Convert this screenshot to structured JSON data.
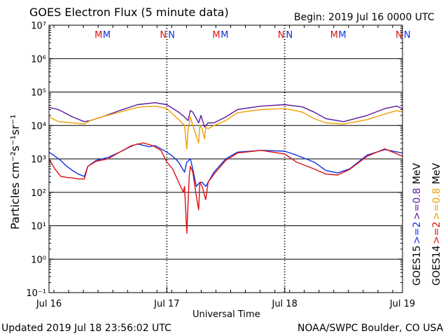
{
  "header": {
    "title": "GOES Electron Flux (5 minute data)",
    "begin": "Begin: 2019 Jul 16 0000 UTC"
  },
  "footer": {
    "updated": "Updated 2019 Jul 18 23:56:02 UTC",
    "credit": "NOAA/SWPC Boulder, CO USA"
  },
  "colors": {
    "goes15_high": "#5a1a9a",
    "goes14_high": "#f0a000",
    "goes15_low": "#1030e0",
    "goes14_low": "#e01010",
    "m_marker_primary": "#e01010",
    "m_marker_secondary": "#1030e0"
  },
  "chart_data": {
    "type": "line",
    "title": "GOES Electron Flux (5 minute data)",
    "xlabel": "Universal Time",
    "ylabel": "Particles cm⁻²s⁻¹sr⁻¹",
    "yscale": "log",
    "ylim": [
      0.1,
      10000000
    ],
    "xlim_days": [
      0,
      3
    ],
    "x_ticks": [
      "Jul 16",
      "Jul 17",
      "Jul 18",
      "Jul 19"
    ],
    "y_ticks": [
      "10⁷",
      "10⁶",
      "10⁵",
      "10⁴",
      "10³",
      "10²",
      "10¹",
      "10⁰",
      "10⁻¹"
    ],
    "threshold_line": 1000,
    "grid": true,
    "markers": [
      {
        "label": "M",
        "x": 0.42,
        "color": "#e01010"
      },
      {
        "label": "M",
        "x": 0.49,
        "color": "#1030e0"
      },
      {
        "label": "N",
        "x": 0.97,
        "color": "#e01010"
      },
      {
        "label": "N",
        "x": 1.04,
        "color": "#1030e0"
      },
      {
        "label": "M",
        "x": 1.42,
        "color": "#e01010"
      },
      {
        "label": "M",
        "x": 1.49,
        "color": "#1030e0"
      },
      {
        "label": "N",
        "x": 1.97,
        "color": "#e01010"
      },
      {
        "label": "N",
        "x": 2.04,
        "color": "#1030e0"
      },
      {
        "label": "M",
        "x": 2.42,
        "color": "#e01010"
      },
      {
        "label": "M",
        "x": 2.49,
        "color": "#1030e0"
      },
      {
        "label": "N",
        "x": 2.97,
        "color": "#e01010"
      },
      {
        "label": "N",
        "x": 3.04,
        "color": "#1030e0"
      }
    ],
    "legend_right": [
      {
        "text": "GOES15",
        "color": "#000000",
        "col": 1,
        "start": 0
      },
      {
        "text": ">=2",
        "color": "#1030e0",
        "col": 1,
        "start": 1
      },
      {
        "text": ">=0.8",
        "color": "#5a1a9a",
        "col": 1,
        "start": 2
      },
      {
        "text": "MeV",
        "color": "#000000",
        "col": 1,
        "start": 3
      },
      {
        "text": "GOES14",
        "color": "#000000",
        "col": 2,
        "start": 0
      },
      {
        "text": ">=2",
        "color": "#e01010",
        "col": 2,
        "start": 1
      },
      {
        "text": ">=0.8",
        "color": "#f0a000",
        "col": 2,
        "start": 2
      },
      {
        "text": "MeV",
        "color": "#000000",
        "col": 2,
        "start": 3
      }
    ],
    "series": [
      {
        "name": "GOES15 >=0.8 MeV",
        "color": "#5a1a9a",
        "x": [
          0,
          0.08,
          0.2,
          0.3,
          0.35,
          0.45,
          0.6,
          0.75,
          0.9,
          1.0,
          1.1,
          1.15,
          1.18,
          1.2,
          1.22,
          1.27,
          1.29,
          1.32,
          1.35,
          1.4,
          1.5,
          1.6,
          1.8,
          2.0,
          2.15,
          2.25,
          2.35,
          2.5,
          2.7,
          2.85,
          2.95,
          3.0
        ],
        "y": [
          35000,
          30000,
          18000,
          13000,
          14000,
          18000,
          28000,
          42000,
          48000,
          42000,
          25000,
          18000,
          14000,
          28000,
          25000,
          12000,
          20000,
          9000,
          12000,
          12000,
          18000,
          30000,
          38000,
          42000,
          36000,
          25000,
          16000,
          13000,
          20000,
          32000,
          38000,
          32000
        ]
      },
      {
        "name": "GOES14 >=0.8 MeV",
        "color": "#f0a000",
        "x": [
          0,
          0.08,
          0.2,
          0.3,
          0.35,
          0.45,
          0.6,
          0.75,
          0.9,
          1.0,
          1.1,
          1.15,
          1.17,
          1.18,
          1.2,
          1.22,
          1.27,
          1.28,
          1.3,
          1.32,
          1.33,
          1.35,
          1.4,
          1.5,
          1.6,
          1.8,
          2.0,
          2.15,
          2.25,
          2.35,
          2.5,
          2.7,
          2.85,
          2.95,
          3.0
        ],
        "y": [
          18000,
          13000,
          12000,
          11000,
          14000,
          18000,
          25000,
          35000,
          38000,
          32000,
          15000,
          10000,
          2000,
          7000,
          18000,
          10000,
          3000,
          10000,
          8000,
          4000,
          9000,
          8000,
          10000,
          14000,
          24000,
          30000,
          32000,
          25000,
          16000,
          12000,
          11000,
          15000,
          22000,
          28000,
          25000
        ]
      },
      {
        "name": "GOES15 >=2 MeV",
        "color": "#1030e0",
        "x": [
          0,
          0.05,
          0.1,
          0.15,
          0.2,
          0.25,
          0.3,
          0.33,
          0.4,
          0.5,
          0.6,
          0.7,
          0.75,
          0.85,
          0.9,
          0.95,
          1.0,
          1.05,
          1.1,
          1.15,
          1.17,
          1.2,
          1.22,
          1.25,
          1.28,
          1.3,
          1.33,
          1.35,
          1.4,
          1.5,
          1.6,
          1.8,
          2.0,
          2.1,
          2.25,
          2.35,
          2.45,
          2.55,
          2.7,
          2.85,
          3.0
        ],
        "y": [
          1600,
          1200,
          900,
          600,
          450,
          350,
          300,
          600,
          900,
          1100,
          1600,
          2400,
          2800,
          2300,
          2500,
          2000,
          1600,
          1200,
          800,
          400,
          800,
          1000,
          500,
          150,
          200,
          200,
          150,
          200,
          400,
          1000,
          1600,
          1800,
          1700,
          1300,
          800,
          450,
          380,
          500,
          1300,
          1900,
          1500
        ]
      },
      {
        "name": "GOES14 >=2 MeV",
        "color": "#e01010",
        "x": [
          0,
          0.05,
          0.1,
          0.15,
          0.2,
          0.25,
          0.3,
          0.33,
          0.4,
          0.5,
          0.6,
          0.7,
          0.8,
          0.88,
          0.95,
          1.0,
          1.05,
          1.1,
          1.14,
          1.15,
          1.17,
          1.19,
          1.2,
          1.22,
          1.25,
          1.27,
          1.28,
          1.3,
          1.33,
          1.35,
          1.4,
          1.5,
          1.6,
          1.8,
          2.0,
          2.1,
          2.25,
          2.35,
          2.45,
          2.55,
          2.7,
          2.85,
          3.0
        ],
        "y": [
          1000,
          500,
          300,
          280,
          270,
          250,
          250,
          600,
          850,
          1000,
          1600,
          2500,
          3000,
          2500,
          1800,
          800,
          500,
          200,
          100,
          150,
          6,
          300,
          600,
          400,
          80,
          30,
          200,
          150,
          60,
          200,
          350,
          900,
          1500,
          1800,
          1400,
          800,
          500,
          350,
          330,
          480,
          1200,
          2000,
          1200
        ]
      }
    ]
  }
}
